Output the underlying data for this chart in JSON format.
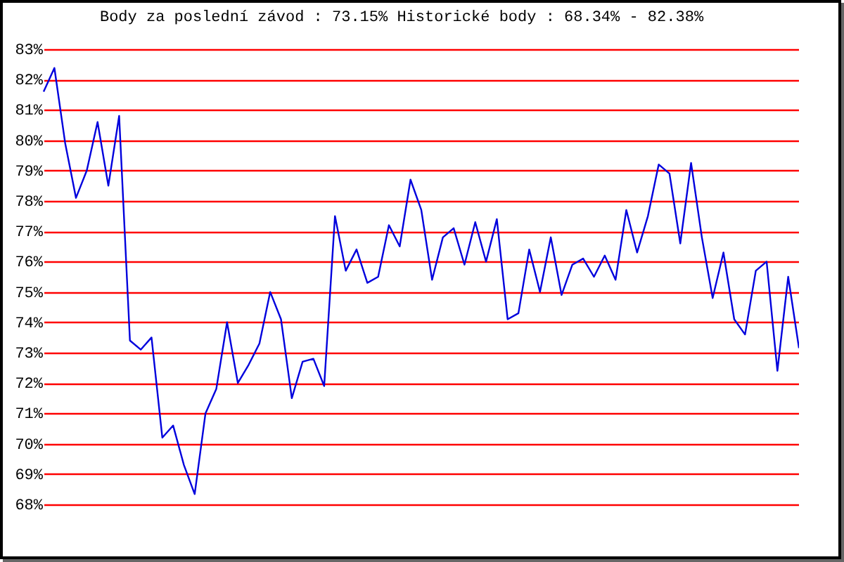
{
  "chart_data": {
    "type": "line",
    "title": "Body za poslední závod : 73.15%  Historické body : 68.34% - 82.38%",
    "categories": [
      null,
      null,
      null,
      null,
      null,
      null,
      null,
      null,
      null,
      null,
      null,
      null,
      null,
      null,
      null,
      null,
      null,
      null,
      null,
      null,
      null,
      null,
      null,
      null,
      null,
      null,
      null,
      null,
      null,
      null,
      null,
      null,
      null,
      null,
      null,
      null,
      null,
      null,
      null,
      null,
      null,
      null,
      null,
      null,
      null,
      null,
      null,
      null,
      null,
      null,
      null,
      null,
      null,
      null,
      null,
      null,
      null,
      null,
      null,
      null,
      null,
      null,
      null,
      null,
      null,
      null,
      null,
      null,
      null,
      null,
      null
    ],
    "series": [
      {
        "color": "#0000dd",
        "values": [
          81.6,
          82.38,
          79.9,
          78.1,
          79.0,
          80.6,
          78.5,
          80.8,
          73.4,
          73.1,
          73.5,
          70.2,
          70.6,
          69.3,
          68.34,
          71.0,
          71.8,
          74.0,
          72.0,
          72.6,
          73.3,
          75.0,
          74.1,
          71.5,
          72.7,
          72.8,
          71.9,
          77.5,
          75.7,
          76.4,
          75.3,
          75.5,
          77.2,
          76.5,
          78.7,
          77.7,
          75.4,
          76.8,
          77.1,
          75.9,
          77.3,
          76.0,
          77.4,
          74.1,
          74.3,
          76.4,
          75.0,
          76.8,
          74.9,
          75.9,
          76.1,
          75.5,
          76.2,
          75.4,
          77.7,
          76.3,
          77.5,
          79.2,
          78.9,
          76.6,
          79.25,
          76.8,
          74.8,
          76.3,
          74.1,
          73.6,
          75.7,
          76.0,
          72.4,
          75.5,
          73.15
        ]
      }
    ],
    "ylim": [
      68,
      83
    ],
    "yticks": [
      {
        "value": 68,
        "label": "68%"
      },
      {
        "value": 69,
        "label": "69%"
      },
      {
        "value": 70,
        "label": "70%"
      },
      {
        "value": 71,
        "label": "71%"
      },
      {
        "value": 72,
        "label": "72%"
      },
      {
        "value": 73,
        "label": "73%"
      },
      {
        "value": 74,
        "label": "74%"
      },
      {
        "value": 75,
        "label": "75%"
      },
      {
        "value": 76,
        "label": "76%"
      },
      {
        "value": 77,
        "label": "77%"
      },
      {
        "value": 78,
        "label": "78%"
      },
      {
        "value": 79,
        "label": "79%"
      },
      {
        "value": 80,
        "label": "80%"
      },
      {
        "value": 81,
        "label": "81%"
      },
      {
        "value": 82,
        "label": "82%"
      },
      {
        "value": 83,
        "label": "83%"
      }
    ],
    "grid": "y",
    "tick_labels": "y",
    "marker": "none",
    "line_style": "solid"
  }
}
